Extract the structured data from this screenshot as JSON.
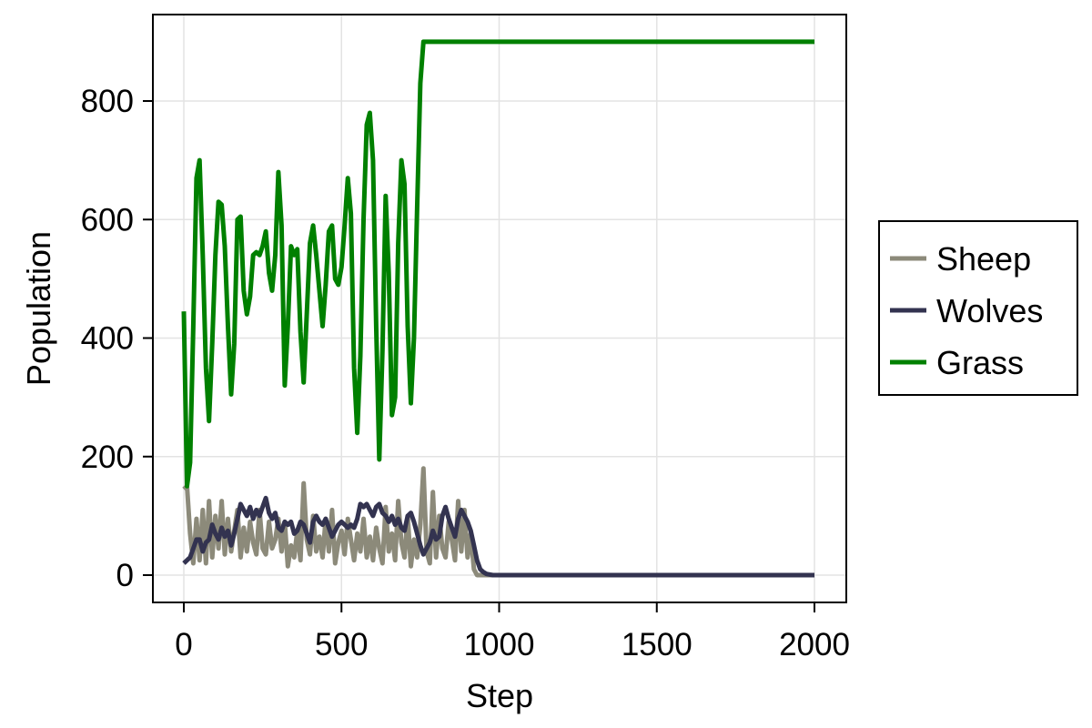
{
  "chart_data": {
    "type": "line",
    "title": "",
    "xlabel": "Step",
    "ylabel": "Population",
    "xlim": [
      -100,
      2100
    ],
    "ylim": [
      -45,
      945
    ],
    "xticks": [
      0,
      500,
      1000,
      1500,
      2000
    ],
    "yticks": [
      0,
      200,
      400,
      600,
      800
    ],
    "xtick_labels": [
      "0",
      "500",
      "1000",
      "1500",
      "2000"
    ],
    "ytick_labels": [
      "0",
      "200",
      "400",
      "600",
      "800"
    ],
    "grid": true,
    "legend_position": "right-outside",
    "series": [
      {
        "name": "Sheep",
        "color": "#8c8a7a",
        "x": [
          0,
          10,
          20,
          30,
          40,
          50,
          60,
          70,
          80,
          90,
          100,
          110,
          120,
          130,
          140,
          150,
          160,
          170,
          180,
          190,
          200,
          210,
          220,
          230,
          240,
          250,
          260,
          270,
          280,
          290,
          300,
          310,
          320,
          330,
          340,
          350,
          360,
          370,
          380,
          390,
          400,
          410,
          420,
          430,
          440,
          450,
          460,
          470,
          480,
          490,
          500,
          510,
          520,
          530,
          540,
          550,
          560,
          570,
          580,
          590,
          600,
          610,
          620,
          630,
          640,
          650,
          660,
          670,
          680,
          690,
          700,
          710,
          720,
          730,
          740,
          750,
          760,
          770,
          780,
          790,
          800,
          810,
          820,
          830,
          840,
          850,
          860,
          870,
          880,
          890,
          900,
          910,
          920,
          930,
          940,
          950,
          960,
          980,
          1000,
          2000
        ],
        "values": [
          145,
          150,
          70,
          20,
          95,
          25,
          110,
          20,
          125,
          30,
          100,
          45,
          125,
          35,
          95,
          40,
          75,
          110,
          30,
          80,
          40,
          90,
          55,
          35,
          110,
          45,
          35,
          90,
          45,
          60,
          95,
          40,
          90,
          15,
          50,
          30,
          75,
          25,
          155,
          60,
          35,
          100,
          40,
          65,
          30,
          95,
          40,
          110,
          20,
          55,
          75,
          35,
          95,
          60,
          25,
          70,
          40,
          95,
          30,
          65,
          25,
          80,
          45,
          20,
          115,
          40,
          70,
          25,
          125,
          55,
          30,
          100,
          15,
          60,
          30,
          85,
          180,
          40,
          20,
          140,
          30,
          100,
          45,
          30,
          90,
          60,
          25,
          125,
          40,
          110,
          30,
          70,
          10,
          0,
          0,
          0,
          0,
          0,
          0,
          0
        ]
      },
      {
        "name": "Wolves",
        "color": "#333350",
        "x": [
          0,
          10,
          20,
          30,
          40,
          50,
          60,
          70,
          80,
          90,
          100,
          110,
          120,
          130,
          140,
          150,
          160,
          170,
          180,
          190,
          200,
          210,
          220,
          230,
          240,
          250,
          260,
          270,
          280,
          290,
          300,
          310,
          320,
          330,
          340,
          350,
          360,
          370,
          380,
          390,
          400,
          410,
          420,
          430,
          440,
          450,
          460,
          470,
          480,
          490,
          500,
          510,
          520,
          530,
          540,
          550,
          560,
          570,
          580,
          590,
          600,
          610,
          620,
          630,
          640,
          650,
          660,
          670,
          680,
          690,
          700,
          710,
          720,
          730,
          740,
          750,
          760,
          770,
          780,
          790,
          800,
          810,
          820,
          830,
          840,
          850,
          860,
          870,
          880,
          890,
          900,
          910,
          920,
          930,
          940,
          950,
          960,
          980,
          1000,
          2000
        ],
        "values": [
          20,
          25,
          30,
          45,
          60,
          60,
          40,
          55,
          60,
          85,
          70,
          60,
          80,
          65,
          75,
          50,
          70,
          95,
          120,
          110,
          100,
          115,
          95,
          110,
          100,
          115,
          130,
          105,
          95,
          105,
          80,
          75,
          90,
          85,
          90,
          70,
          75,
          90,
          85,
          70,
          55,
          90,
          100,
          90,
          85,
          95,
          80,
          65,
          75,
          85,
          90,
          85,
          80,
          85,
          80,
          95,
          120,
          115,
          120,
          110,
          100,
          115,
          120,
          105,
          100,
          90,
          100,
          85,
          95,
          80,
          75,
          100,
          105,
          90,
          70,
          50,
          35,
          45,
          55,
          75,
          60,
          65,
          100,
          115,
          95,
          80,
          65,
          95,
          110,
          100,
          90,
          75,
          50,
          25,
          10,
          5,
          2,
          0,
          0,
          0
        ]
      },
      {
        "name": "Grass",
        "color": "#008000",
        "x": [
          0,
          10,
          20,
          30,
          40,
          50,
          60,
          70,
          80,
          90,
          100,
          110,
          120,
          130,
          140,
          150,
          160,
          170,
          180,
          190,
          200,
          210,
          220,
          230,
          240,
          250,
          260,
          270,
          280,
          290,
          300,
          310,
          320,
          330,
          340,
          350,
          360,
          370,
          380,
          390,
          400,
          410,
          420,
          430,
          440,
          450,
          460,
          470,
          480,
          490,
          500,
          510,
          520,
          530,
          540,
          550,
          560,
          570,
          580,
          590,
          600,
          610,
          620,
          630,
          640,
          650,
          660,
          670,
          680,
          690,
          700,
          710,
          720,
          730,
          740,
          750,
          760,
          770,
          780,
          790,
          800,
          810,
          820,
          830,
          840,
          850,
          860,
          870,
          880,
          890,
          900,
          910,
          920,
          930,
          940,
          2000
        ],
        "values": [
          445,
          150,
          190,
          420,
          670,
          700,
          540,
          350,
          260,
          390,
          540,
          630,
          625,
          555,
          420,
          305,
          390,
          600,
          605,
          480,
          440,
          470,
          540,
          545,
          540,
          555,
          580,
          510,
          480,
          540,
          680,
          590,
          320,
          420,
          555,
          540,
          550,
          410,
          325,
          440,
          560,
          590,
          540,
          480,
          420,
          490,
          580,
          590,
          500,
          490,
          520,
          590,
          670,
          610,
          350,
          240,
          370,
          600,
          760,
          780,
          700,
          420,
          195,
          380,
          640,
          510,
          270,
          300,
          560,
          700,
          660,
          420,
          290,
          400,
          620,
          830,
          900,
          900,
          900,
          900,
          900,
          900,
          900,
          900,
          900,
          900,
          900,
          900,
          900,
          900,
          900,
          900,
          900,
          900,
          900,
          900
        ]
      }
    ]
  }
}
